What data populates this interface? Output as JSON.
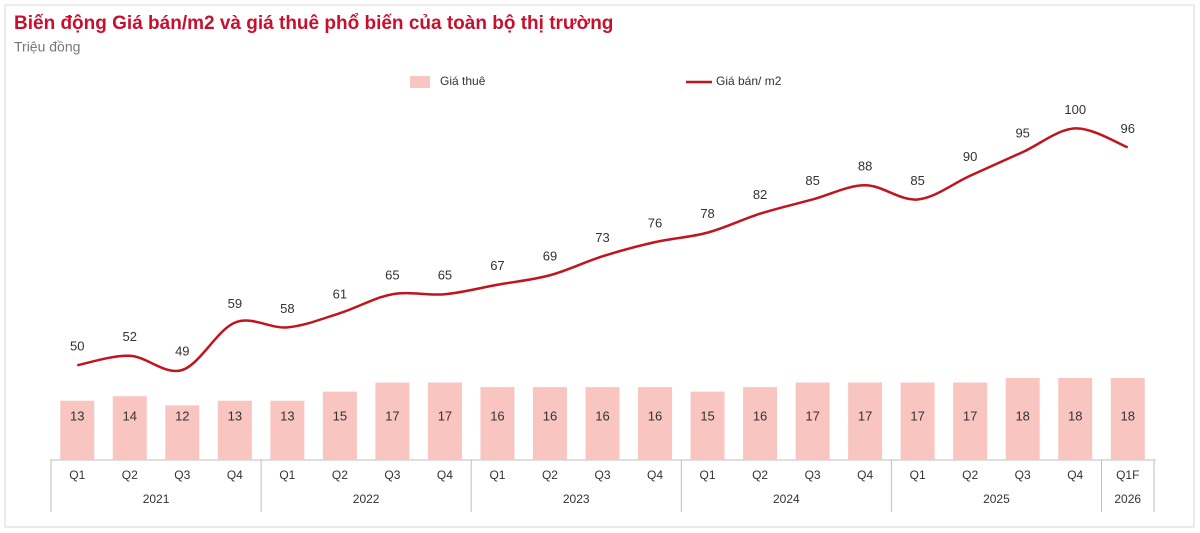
{
  "chart_data": {
    "type": "bar-line",
    "title": "Biến động Giá bán/m2 và giá thuê phổ biến của toàn bộ thị trường",
    "subtitle": "Triệu đồng",
    "groups": [
      {
        "label": "2021",
        "categories": [
          "Q1",
          "Q2",
          "Q3",
          "Q4"
        ]
      },
      {
        "label": "2022",
        "categories": [
          "Q1",
          "Q2",
          "Q3",
          "Q4"
        ]
      },
      {
        "label": "2023",
        "categories": [
          "Q1",
          "Q2",
          "Q3",
          "Q4"
        ]
      },
      {
        "label": "2024",
        "categories": [
          "Q1",
          "Q2",
          "Q3",
          "Q4"
        ]
      },
      {
        "label": "2025",
        "categories": [
          "Q1",
          "Q2",
          "Q3",
          "Q4"
        ]
      },
      {
        "label": "2026",
        "categories": [
          "Q1F"
        ]
      }
    ],
    "series": [
      {
        "name": "Giá thuê",
        "type": "bar",
        "axis": "y2",
        "color": "#f9c5c1",
        "values": [
          13,
          14,
          12,
          13,
          13,
          15,
          17,
          17,
          16,
          16,
          16,
          16,
          15,
          16,
          17,
          17,
          17,
          17,
          18,
          18,
          18
        ]
      },
      {
        "name": "Giá bán/ m2",
        "type": "line",
        "color": "#c0141f",
        "values": [
          50,
          52,
          49,
          59,
          58,
          61,
          65,
          65,
          67,
          69,
          73,
          76,
          78,
          82,
          85,
          88,
          85,
          90,
          95,
          100,
          96
        ]
      }
    ],
    "ylim": [
      30,
      106
    ],
    "y2lim": [
      0,
      79
    ]
  }
}
